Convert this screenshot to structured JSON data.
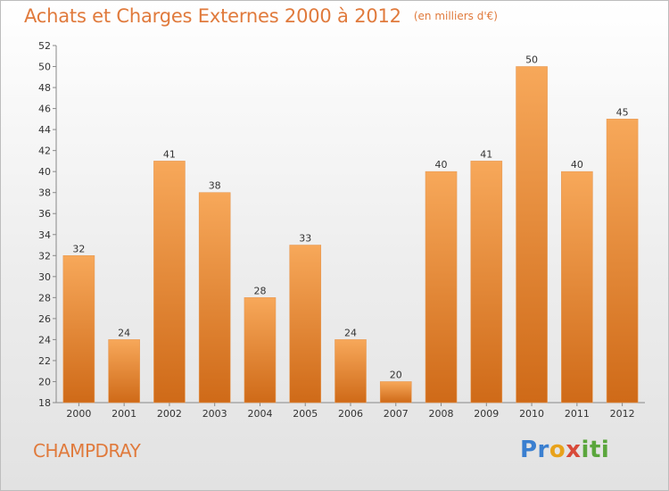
{
  "title": "Achats et Charges Externes 2000 à 2012",
  "unit": "(en milliers d'€)",
  "commune": "CHAMPDRAY",
  "logo": {
    "parts": [
      "Pr",
      "o",
      "x",
      "iti"
    ]
  },
  "colors": {
    "bar_light": "#f7a85a",
    "bar_dark": "#cf6a18",
    "text_accent": "#e07a3c"
  },
  "chart_data": {
    "type": "bar",
    "title": "Achats et Charges Externes 2000 à 2012",
    "subtitle": "(en milliers d'€)",
    "categories": [
      "2000",
      "2001",
      "2002",
      "2003",
      "2004",
      "2005",
      "2006",
      "2007",
      "2008",
      "2009",
      "2010",
      "2011",
      "2012"
    ],
    "values": [
      32,
      24,
      41,
      38,
      28,
      33,
      24,
      20,
      40,
      41,
      50,
      40,
      45
    ],
    "ylim": [
      18,
      52
    ],
    "yticks": [
      18,
      20,
      22,
      24,
      26,
      28,
      30,
      32,
      34,
      36,
      38,
      40,
      42,
      44,
      46,
      48,
      50,
      52
    ],
    "grid": false,
    "xlabel": "",
    "ylabel": ""
  }
}
